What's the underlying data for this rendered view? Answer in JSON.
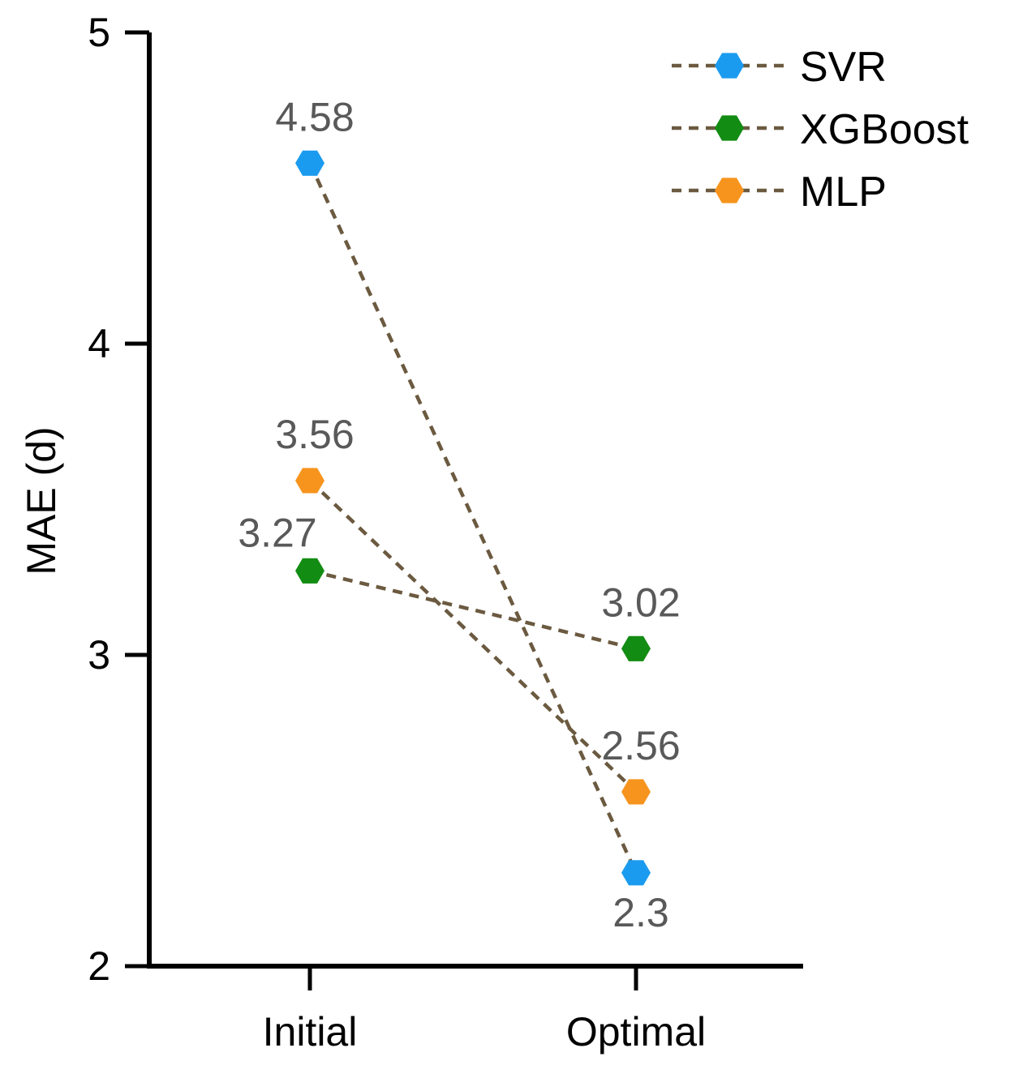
{
  "chart_data": {
    "type": "line",
    "title": "",
    "xlabel": "",
    "ylabel": "MAE (d)",
    "categories": [
      "Initial",
      "Optimal"
    ],
    "ylim": [
      2,
      5
    ],
    "yticks": [
      2,
      3,
      4,
      5
    ],
    "ytick_labels": [
      "2",
      "3",
      "4",
      "5"
    ],
    "grid": false,
    "legend_position": "top-right",
    "line_color": "#6b5a40",
    "line_style": "dashed",
    "series": [
      {
        "name": "SVR",
        "values": [
          4.58,
          2.3
        ],
        "labels": [
          "4.58",
          "2.3"
        ],
        "color": "#1a9bf0"
      },
      {
        "name": "XGBoost",
        "values": [
          3.27,
          3.02
        ],
        "labels": [
          "3.27",
          "3.02"
        ],
        "color": "#128c12"
      },
      {
        "name": "MLP",
        "values": [
          3.56,
          2.56
        ],
        "labels": [
          "3.56",
          "2.56"
        ],
        "color": "#f7941d"
      }
    ]
  }
}
